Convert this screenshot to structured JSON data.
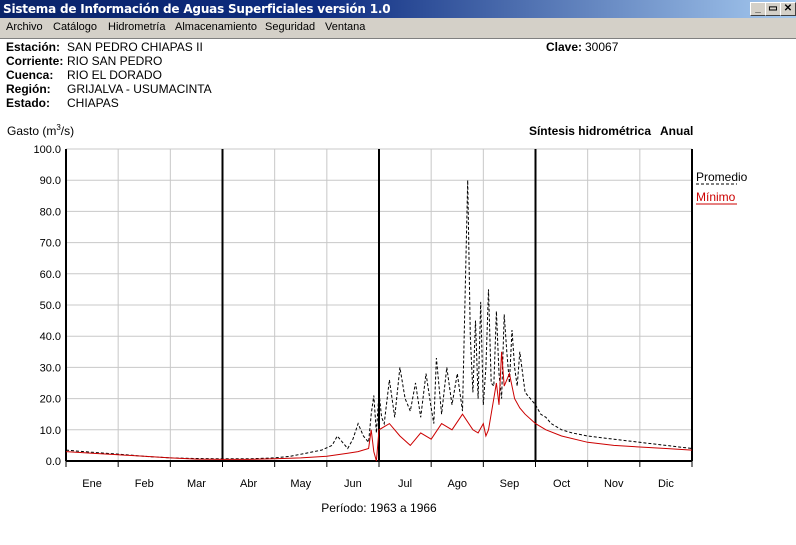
{
  "window": {
    "title": "Sistema de Información de Aguas Superficiales  versión 1.0",
    "controls": [
      "_",
      "▭",
      "✕"
    ]
  },
  "menu": [
    "Archivo",
    "Catálogo",
    "Hidrometría",
    "Almacenamiento",
    "Seguridad",
    "Ventana"
  ],
  "station": {
    "estacion_label": "Estación:",
    "estacion": "SAN PEDRO CHIAPAS II",
    "corriente_label": "Corriente:",
    "corriente": "RIO SAN PEDRO",
    "cuenca_label": "Cuenca:",
    "cuenca": "RIO EL DORADO",
    "region_label": "Región:",
    "region": "GRIJALVA - USUMACINTA",
    "estado_label": "Estado:",
    "estado": "CHIAPAS",
    "clave_label": "Clave:",
    "clave": "30067"
  },
  "chart_data": {
    "type": "line",
    "title": "Síntesis hidrométrica",
    "subtitle": "Anual",
    "ylabel": "Gasto (m³/s)",
    "ylabel_base": "Gasto (m",
    "ylabel_sup": "3",
    "ylabel_end": "/s)",
    "ylim": [
      0,
      100
    ],
    "yticks": [
      "0.0",
      "10.0",
      "20.0",
      "30.0",
      "40.0",
      "50.0",
      "60.0",
      "70.0",
      "80.0",
      "90.0",
      "100.0"
    ],
    "categories": [
      "Ene",
      "Feb",
      "Mar",
      "Abr",
      "May",
      "Jun",
      "Jul",
      "Ago",
      "Sep",
      "Oct",
      "Nov",
      "Dic"
    ],
    "legend_position": "right",
    "grid": true,
    "footer": "Período:  1963 a 1966",
    "series": [
      {
        "name": "Promedio",
        "style": "dashed",
        "color": "#000000",
        "x": [
          0,
          0.5,
          1,
          1.5,
          2,
          2.5,
          3,
          3.5,
          4,
          4.3,
          4.6,
          4.9,
          5.1,
          5.2,
          5.3,
          5.4,
          5.5,
          5.6,
          5.7,
          5.8,
          5.85,
          5.9,
          5.95,
          6.0,
          6.05,
          6.1,
          6.2,
          6.3,
          6.4,
          6.5,
          6.55,
          6.6,
          6.7,
          6.8,
          6.9,
          7.0,
          7.05,
          7.1,
          7.2,
          7.3,
          7.4,
          7.5,
          7.6,
          7.7,
          7.75,
          7.8,
          7.85,
          7.9,
          7.95,
          8.0,
          8.05,
          8.1,
          8.15,
          8.2,
          8.25,
          8.3,
          8.35,
          8.4,
          8.45,
          8.5,
          8.55,
          8.6,
          8.65,
          8.7,
          8.8,
          8.9,
          9.0,
          9.1,
          9.2,
          9.3,
          9.4,
          9.5,
          9.7,
          10.0,
          10.5,
          11.0,
          11.5,
          12.0
        ],
        "y": [
          3.5,
          2.8,
          2.2,
          1.5,
          1.0,
          0.8,
          0.7,
          0.7,
          1.0,
          1.5,
          2.5,
          3.5,
          5,
          8,
          6,
          4,
          7,
          12,
          8,
          6,
          15,
          21,
          9,
          22,
          14,
          12,
          26,
          14,
          30,
          20,
          18,
          16,
          25,
          14,
          28,
          17,
          12,
          33,
          15,
          30,
          18,
          28,
          16,
          90,
          40,
          22,
          45,
          20,
          51,
          18,
          30,
          55,
          25,
          24,
          48,
          28,
          20,
          47,
          35,
          25,
          42,
          30,
          24,
          35,
          22,
          20,
          18,
          15,
          14,
          12,
          11,
          10,
          9,
          8,
          7,
          6,
          5,
          4
        ]
      },
      {
        "name": "Mínimo",
        "style": "solid",
        "color": "#cc0000",
        "x": [
          0,
          0.5,
          1,
          1.5,
          2,
          2.5,
          3,
          3.5,
          4,
          4.5,
          5,
          5.2,
          5.4,
          5.6,
          5.8,
          5.85,
          5.9,
          5.95,
          6.0,
          6.2,
          6.4,
          6.6,
          6.8,
          7.0,
          7.2,
          7.4,
          7.6,
          7.8,
          7.9,
          8.0,
          8.05,
          8.1,
          8.2,
          8.25,
          8.3,
          8.35,
          8.4,
          8.5,
          8.6,
          8.7,
          8.8,
          9.0,
          9.2,
          9.5,
          10.0,
          10.5,
          11.0,
          11.5,
          12.0
        ],
        "y": [
          3.0,
          2.5,
          2.0,
          1.5,
          1.0,
          0.6,
          0.5,
          0.5,
          0.7,
          1.0,
          1.5,
          2.0,
          2.5,
          3.0,
          4.0,
          10,
          3,
          0,
          10,
          12,
          8,
          5,
          9,
          7,
          12,
          10,
          15,
          10,
          9,
          12,
          8,
          10,
          20,
          25,
          18,
          35,
          24,
          28,
          20,
          17,
          15,
          12,
          10,
          8,
          6,
          5,
          4.5,
          4,
          3.5
        ]
      }
    ]
  }
}
